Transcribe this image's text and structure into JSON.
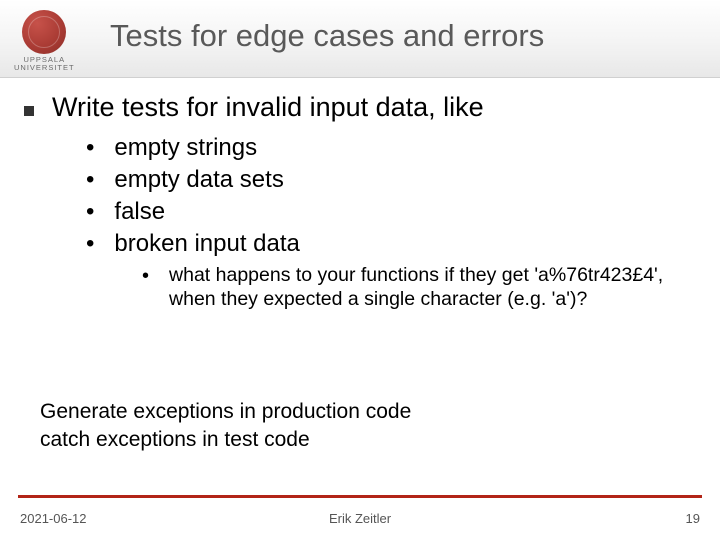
{
  "logo": {
    "university_line1": "UPPSALA",
    "university_line2": "UNIVERSITET",
    "seal_color": "#a83a33"
  },
  "title": "Tests for edge cases and errors",
  "main_point": "Write tests for invalid input data, like",
  "bullets": [
    "empty strings",
    "empty data sets",
    "false",
    "broken input data"
  ],
  "sub_bullet": "what happens to your functions if they get 'a%76tr423£4', when they expected a single character (e.g. 'a')?",
  "closing": {
    "line1": "Generate exceptions in production code",
    "line2": "catch exceptions in test code"
  },
  "footer": {
    "date": "2021-06-12",
    "author": "Erik Zeitler",
    "page": "19",
    "rule_color": "#b22417"
  },
  "colors": {
    "title_color": "#595959",
    "text_color": "#000000",
    "background": "#ffffff"
  }
}
